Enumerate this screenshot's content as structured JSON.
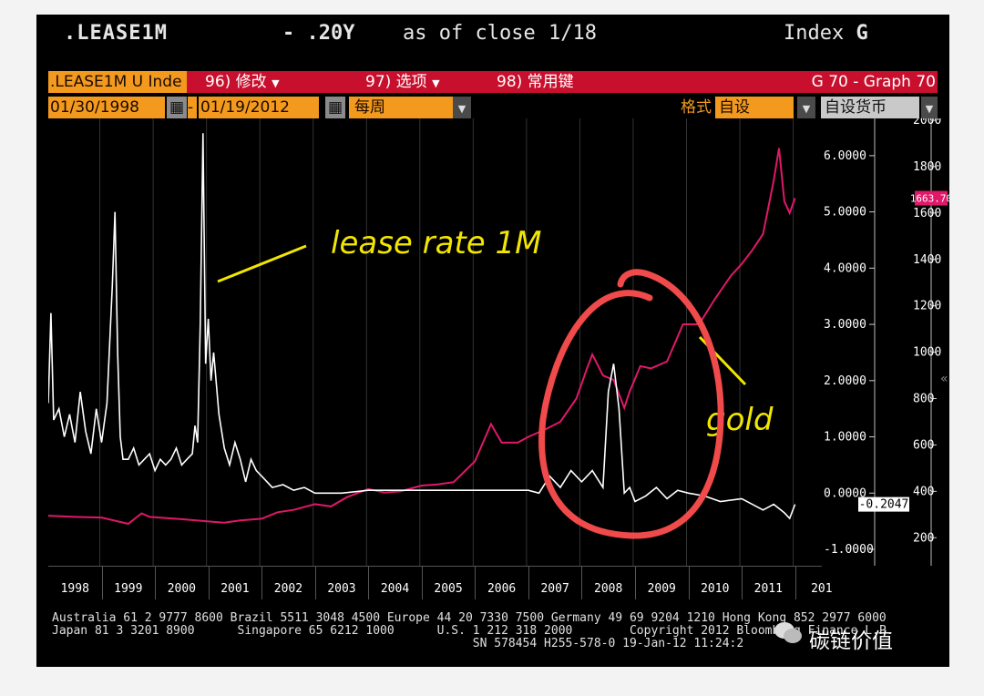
{
  "header": {
    "ticker": ".LEASE1M",
    "spread": "- .20Y",
    "as_of": "as of close",
    "date": "1/18",
    "index_label": "Index",
    "index_key": "G"
  },
  "toolbar": {
    "security_field": ".LEASE1M U Inde",
    "menu_modify": "96) 修改",
    "menu_options": "97) 选项",
    "menu_hotkeys": "98) 常用键",
    "graph_label": "G 70 - Graph 70",
    "start_date": "01/30/1998",
    "end_date": "01/19/2012",
    "period": "每周",
    "format_label": "格式",
    "format_value": "自设",
    "currency": "自设货币"
  },
  "colors": {
    "lease_series": "#ffffff",
    "gold_series": "#e0186a",
    "annotation": "#f2e600",
    "circle": "#f04a4a",
    "toolbar_red": "#c8102e",
    "toolbar_orange": "#f39a1e"
  },
  "chart_data": {
    "type": "line",
    "x_ticks": [
      "1998",
      "1999",
      "2000",
      "2001",
      "2002",
      "2003",
      "2004",
      "2005",
      "2006",
      "2007",
      "2008",
      "2009",
      "2010",
      "2011",
      "201"
    ],
    "left_axis": {
      "ticks": [
        "6.0000",
        "5.0000",
        "4.0000",
        "3.0000",
        "2.0000",
        "1.0000",
        "0.0000",
        "-1.0000"
      ],
      "range": [
        -1.0,
        6.5
      ]
    },
    "right_axis": {
      "ticks": [
        "2000",
        "1800",
        "1600",
        "1400",
        "1200",
        "1000",
        "800",
        "600",
        "400",
        "200"
      ],
      "range": [
        150,
        2000
      ]
    },
    "last_values": {
      "lease": "-0.2047",
      "gold": "1663.70"
    },
    "series": [
      {
        "name": "lease rate 1M",
        "axis": "left",
        "x": [
          1998.0,
          1998.05,
          1998.1,
          1998.2,
          1998.3,
          1998.4,
          1998.5,
          1998.6,
          1998.7,
          1998.8,
          1998.9,
          1999.0,
          1999.1,
          1999.2,
          1999.25,
          1999.3,
          1999.35,
          1999.4,
          1999.5,
          1999.6,
          1999.7,
          1999.8,
          1999.9,
          2000.0,
          2000.1,
          2000.2,
          2000.3,
          2000.4,
          2000.5,
          2000.6,
          2000.7,
          2000.75,
          2000.8,
          2000.85,
          2000.9,
          2000.95,
          2001.0,
          2001.05,
          2001.1,
          2001.2,
          2001.3,
          2001.4,
          2001.5,
          2001.6,
          2001.7,
          2001.8,
          2001.9,
          2002.0,
          2002.2,
          2002.4,
          2002.6,
          2002.8,
          2003.0,
          2003.5,
          2004.0,
          2004.5,
          2005.0,
          2005.5,
          2006.0,
          2006.5,
          2007.0,
          2007.2,
          2007.4,
          2007.6,
          2007.8,
          2008.0,
          2008.2,
          2008.4,
          2008.5,
          2008.6,
          2008.7,
          2008.8,
          2008.9,
          2009.0,
          2009.2,
          2009.4,
          2009.6,
          2009.8,
          2010.0,
          2010.3,
          2010.6,
          2011.0,
          2011.2,
          2011.4,
          2011.6,
          2011.8,
          2011.9,
          2012.0
        ],
        "y": [
          1.6,
          3.2,
          1.3,
          1.5,
          1.0,
          1.4,
          0.9,
          1.8,
          1.1,
          0.7,
          1.5,
          0.9,
          1.6,
          3.7,
          5.0,
          2.5,
          1.0,
          0.6,
          0.6,
          0.8,
          0.5,
          0.6,
          0.7,
          0.4,
          0.6,
          0.5,
          0.6,
          0.8,
          0.5,
          0.6,
          0.7,
          1.2,
          0.9,
          3.0,
          6.4,
          2.3,
          3.1,
          2.0,
          2.5,
          1.4,
          0.8,
          0.5,
          0.9,
          0.6,
          0.2,
          0.6,
          0.4,
          0.3,
          0.1,
          0.15,
          0.05,
          0.1,
          0.0,
          0.0,
          0.05,
          0.05,
          0.05,
          0.05,
          0.05,
          0.05,
          0.05,
          0.0,
          0.3,
          0.1,
          0.4,
          0.2,
          0.4,
          0.1,
          1.8,
          2.3,
          1.5,
          0.0,
          0.1,
          -0.15,
          -0.05,
          0.1,
          -0.1,
          0.05,
          0.0,
          -0.05,
          -0.15,
          -0.1,
          -0.2,
          -0.3,
          -0.2,
          -0.35,
          -0.45,
          -0.2
        ]
      },
      {
        "name": "gold",
        "axis": "right",
        "x": [
          1998.0,
          1998.5,
          1999.0,
          1999.5,
          1999.75,
          1999.9,
          2000.2,
          2000.5,
          2001.0,
          2001.3,
          2001.6,
          2002.0,
          2002.3,
          2002.6,
          2003.0,
          2003.3,
          2003.6,
          2004.0,
          2004.3,
          2004.6,
          2005.0,
          2005.3,
          2005.6,
          2006.0,
          2006.3,
          2006.5,
          2006.8,
          2007.0,
          2007.3,
          2007.6,
          2007.9,
          2008.1,
          2008.2,
          2008.4,
          2008.6,
          2008.8,
          2008.9,
          2009.1,
          2009.3,
          2009.6,
          2009.9,
          2010.2,
          2010.5,
          2010.8,
          2011.0,
          2011.2,
          2011.4,
          2011.6,
          2011.7,
          2011.8,
          2011.9,
          2012.0
        ],
        "y": [
          295,
          290,
          287,
          260,
          305,
          290,
          285,
          280,
          270,
          265,
          275,
          282,
          310,
          320,
          345,
          335,
          375,
          410,
          395,
          400,
          425,
          430,
          440,
          530,
          690,
          610,
          610,
          635,
          665,
          700,
          800,
          930,
          990,
          900,
          880,
          760,
          830,
          940,
          930,
          960,
          1120,
          1120,
          1230,
          1330,
          1380,
          1440,
          1510,
          1740,
          1880,
          1650,
          1600,
          1664
        ]
      }
    ],
    "annotations": [
      {
        "text": "lease rate 1M",
        "target": "2000 spike"
      },
      {
        "text": "gold",
        "target": "gold series"
      }
    ]
  },
  "footer": {
    "line1": "Australia 61 2 9777 8600 Brazil 5511 3048 4500 Europe 44 20 7330 7500 Germany 49 69 9204 1210 Hong Kong 852 2977 6000",
    "line2": "Japan 81 3 3201 8900      Singapore 65 6212 1000      U.S. 1 212 318 2000        Copyright 2012 Bloomberg Finance L.P.",
    "line3": "                                                           SN 578454 H255-578-0 19-Jan-12 11:24:2"
  },
  "watermark": {
    "text": "碳链价值"
  }
}
